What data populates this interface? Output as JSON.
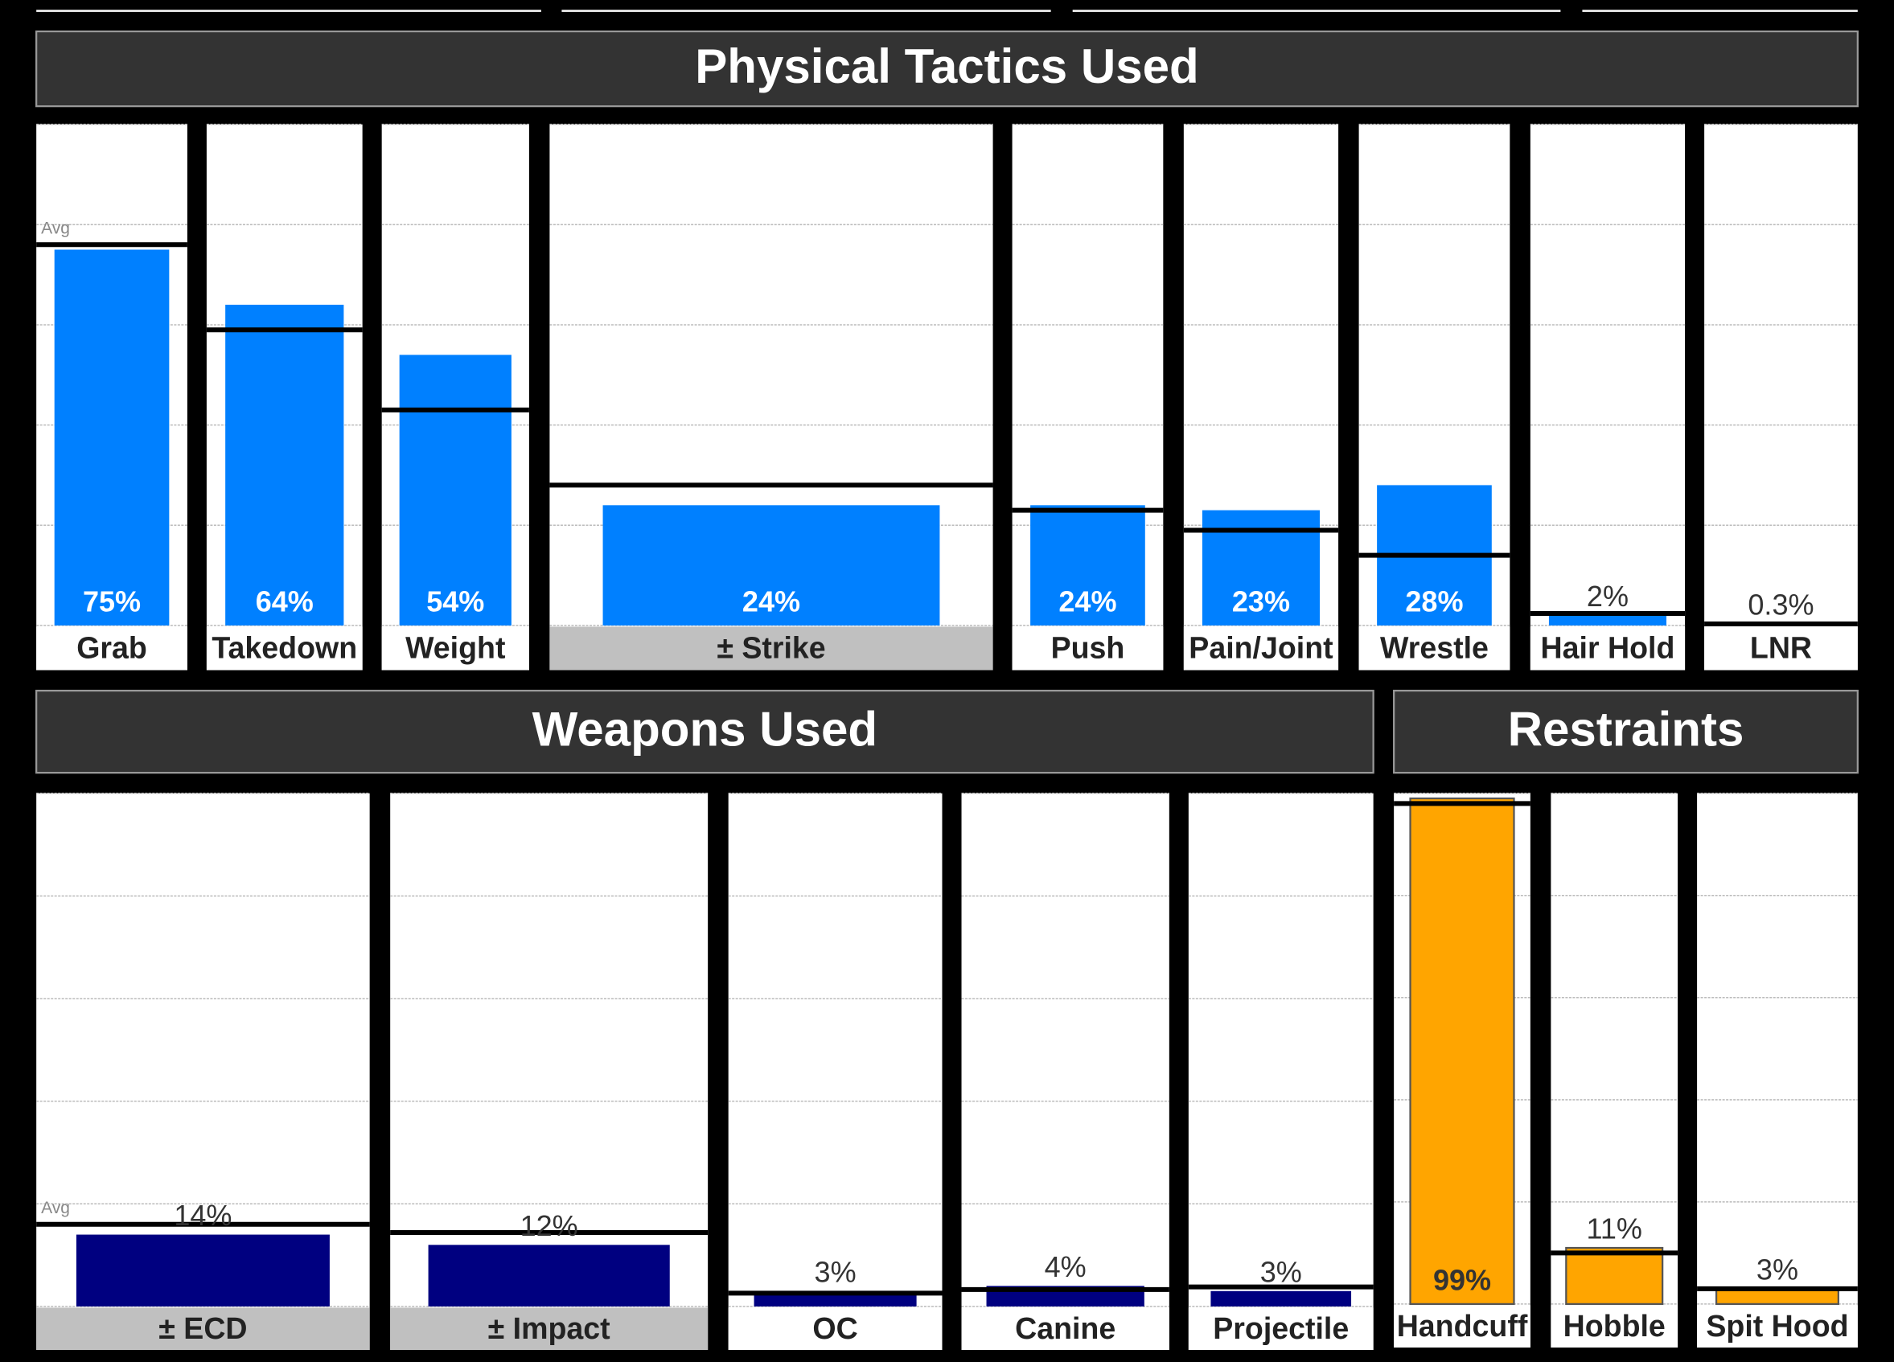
{
  "chart_data": [
    {
      "type": "bar",
      "title": "Physical Tactics Used",
      "categories": [
        "Grab",
        "Takedown",
        "Weight",
        "± Strike",
        "Push",
        "Pain/Joint",
        "Wrestle",
        "Hair Hold",
        "LNR"
      ],
      "values": [
        75,
        64,
        54,
        24,
        24,
        23,
        28,
        2,
        0.3
      ],
      "value_labels": [
        "75%",
        "64%",
        "54%",
        "24%",
        "24%",
        "23%",
        "28%",
        "2%",
        "0.3%"
      ],
      "averages": [
        76,
        59,
        43,
        28,
        23,
        19,
        14,
        2.4,
        0.3
      ],
      "average_label": "Avg",
      "label_backgrounds": [
        "#ffffff",
        "#ffffff",
        "#ffffff",
        "#c0c0c0",
        "#ffffff",
        "#ffffff",
        "#ffffff",
        "#ffffff",
        "#ffffff"
      ],
      "color": "#0080ff",
      "value_label_color": "#ffffff",
      "ylim": [
        0,
        100
      ],
      "yticks": [
        0,
        20,
        40,
        60,
        80,
        100
      ],
      "grid": true
    },
    {
      "type": "bar",
      "title": "Weapons Used",
      "categories": [
        "± ECD",
        "± Impact",
        "OC",
        "Canine",
        "Projectile"
      ],
      "values": [
        14,
        12,
        3,
        4,
        3
      ],
      "value_labels": [
        "14%",
        "12%",
        "3%",
        "4%",
        "3%"
      ],
      "averages": [
        16,
        14.4,
        2.6,
        3.3,
        3.8
      ],
      "average_label": "Avg",
      "label_backgrounds": [
        "#c0c0c0",
        "#c0c0c0",
        "#ffffff",
        "#ffffff",
        "#ffffff"
      ],
      "color": "#000080",
      "value_label_color": "#333333",
      "ylim": [
        0,
        100
      ],
      "yticks": [
        0,
        20,
        40,
        60,
        80,
        100
      ],
      "grid": true
    },
    {
      "type": "bar",
      "title": "Restraints",
      "categories": [
        "Handcuff",
        "Hobble",
        "Spit Hood"
      ],
      "values": [
        99,
        11,
        3
      ],
      "value_labels": [
        "99%",
        "11%",
        "3%"
      ],
      "averages": [
        98,
        10,
        3
      ],
      "label_backgrounds": [
        "#ffffff",
        "#ffffff",
        "#ffffff"
      ],
      "color": "#ffa500",
      "value_label_color": "#333333",
      "ylim": [
        0,
        100
      ],
      "yticks": [
        0,
        20,
        40,
        60,
        80,
        100
      ],
      "grid": true
    }
  ]
}
